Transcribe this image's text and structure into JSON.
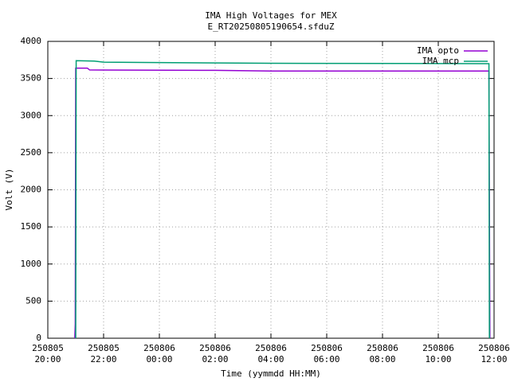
{
  "chart_data": {
    "type": "line",
    "title": "IMA High Voltages for MEX",
    "subtitle": "E_RT20250805190654.sfduZ",
    "x_label": "Time (yymmdd HH:MM)",
    "y_label": "Volt (V)",
    "xlim": [
      "250805 20:00",
      "250806 12:00"
    ],
    "xticks": [
      "250805 20:00",
      "250805 22:00",
      "250806 00:00",
      "250806 02:00",
      "250806 04:00",
      "250806 06:00",
      "250806 08:00",
      "250806 10:00",
      "250806 12:00"
    ],
    "ylim": [
      0,
      4000
    ],
    "yticks": [
      0,
      500,
      1000,
      1500,
      2000,
      2500,
      3000,
      3500,
      4000
    ],
    "grid": true,
    "legend": "top-right",
    "series": [
      {
        "name": "IMA opto",
        "color": "#9400d3",
        "x": [
          "250805 20:58",
          "250805 20:59",
          "250805 21:00",
          "250805 21:25",
          "250805 21:30",
          "250806 02:00",
          "250806 04:00",
          "250806 11:49",
          "250806 11:51"
        ],
        "values": [
          0,
          190,
          3640,
          3640,
          3615,
          3610,
          3600,
          3600,
          0
        ]
      },
      {
        "name": "IMA mcp",
        "color": "#009e73",
        "x": [
          "250805 21:00",
          "250805 21:01",
          "250805 21:40",
          "250805 22:00",
          "250806 00:00",
          "250806 04:00",
          "250806 11:49",
          "250806 11:50"
        ],
        "values": [
          0,
          3740,
          3735,
          3720,
          3715,
          3705,
          3700,
          0
        ]
      }
    ]
  }
}
